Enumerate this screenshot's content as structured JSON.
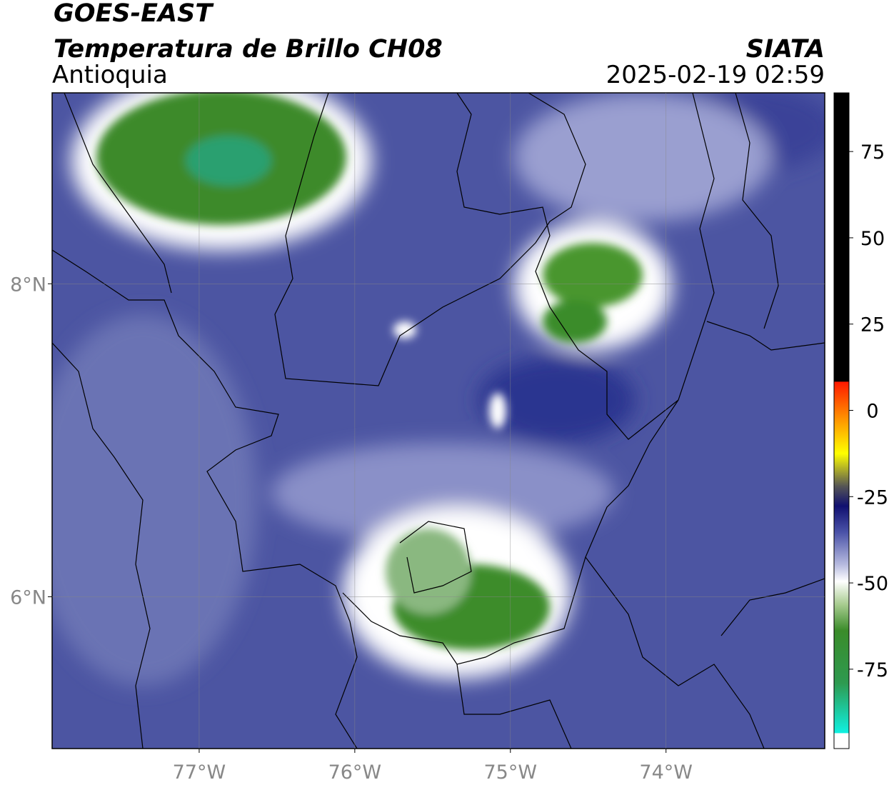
{
  "header": {
    "title": "GOES-EAST",
    "subtitle": "Temperatura de Brillo CH08",
    "region": "Antioquia",
    "agency": "SIATA",
    "datetime": "2025-02-19 02:59"
  },
  "map": {
    "xlim": [
      -77.945,
      -72.98
    ],
    "ylim": [
      5.03,
      9.22
    ],
    "xticks": [
      {
        "value": -77,
        "label": "77°W"
      },
      {
        "value": -76,
        "label": "76°W"
      },
      {
        "value": -75,
        "label": "75°W"
      },
      {
        "value": -74,
        "label": "74°W"
      }
    ],
    "yticks": [
      {
        "value": 6,
        "label": "6°N"
      },
      {
        "value": 8,
        "label": "8°N"
      }
    ]
  },
  "colorbar": {
    "lim": [
      -98,
      92
    ],
    "ticks": [
      -75,
      -50,
      -25,
      0,
      25,
      50,
      75
    ]
  }
}
